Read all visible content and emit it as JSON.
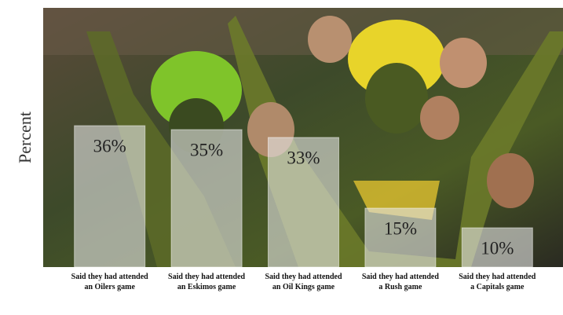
{
  "chart_data": {
    "type": "bar",
    "y_label": "Percent",
    "categories": [
      "Said they had attended an Oilers game",
      "Said they had attended an Eskimos game",
      "Said they had attended an Oil Kings game",
      "Said they had attended a Rush game",
      "Said they had attended a Capitals game"
    ],
    "values": [
      36,
      35,
      33,
      15,
      10
    ],
    "value_labels": [
      "36%",
      "35%",
      "33%",
      "15%",
      "10%"
    ],
    "color": "#e6e6e6",
    "ylim": [
      0,
      60
    ]
  }
}
